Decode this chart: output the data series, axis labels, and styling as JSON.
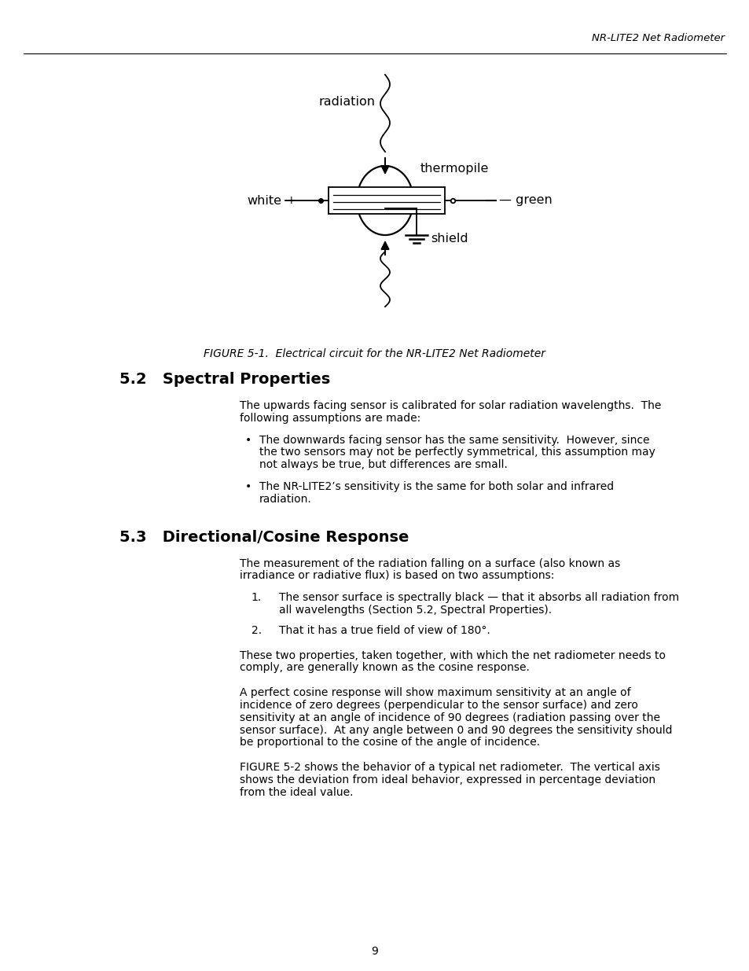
{
  "page_header_right": "NR-LITE2 Net Radiometer",
  "figure_caption": "FIGURE 5-1.  Electrical circuit for the NR-LITE2 Net Radiometer",
  "section_52_title": "5.2   Spectral Properties",
  "section_52_body": [
    "The upwards facing sensor is calibrated for solar radiation wavelengths.  The",
    "following assumptions are made:"
  ],
  "bullet_1": [
    "The downwards facing sensor has the same sensitivity.  However, since",
    "the two sensors may not be perfectly symmetrical, this assumption may",
    "not always be true, but differences are small."
  ],
  "bullet_2": [
    "The NR-LITE2’s sensitivity is the same for both solar and infrared",
    "radiation."
  ],
  "section_53_title": "5.3   Directional/Cosine Response",
  "section_53_body": [
    "The measurement of the radiation falling on a surface (also known as",
    "irradiance or radiative flux) is based on two assumptions:"
  ],
  "num1_label": "1.",
  "num1_body": [
    "The sensor surface is spectrally black — that it absorbs all radiation from",
    "all wavelengths (Section 5.2, Spectral Properties)."
  ],
  "num2_label": "2.",
  "num2_body": "That it has a true field of view of 180°.",
  "para_cosine": [
    "These two properties, taken together, with which the net radiometer needs to",
    "comply, are generally known as the cosine response."
  ],
  "para_perfect": [
    "A perfect cosine response will show maximum sensitivity at an angle of",
    "incidence of zero degrees (perpendicular to the sensor surface) and zero",
    "sensitivity at an angle of incidence of 90 degrees (radiation passing over the",
    "sensor surface).  At any angle between 0 and 90 degrees the sensitivity should",
    "be proportional to the cosine of the angle of incidence."
  ],
  "para_fig": [
    "FIGURE 5-2 shows the behavior of a typical net radiometer.  The vertical axis",
    "shows the deviation from ideal behavior, expressed in percentage deviation",
    "from the ideal value."
  ],
  "page_number": "9",
  "diagram_label_radiation": "radiation",
  "diagram_label_thermopile": "thermopile",
  "diagram_label_white": "white",
  "diagram_label_green": "green",
  "diagram_label_shield": "shield",
  "bg_color": "#ffffff"
}
